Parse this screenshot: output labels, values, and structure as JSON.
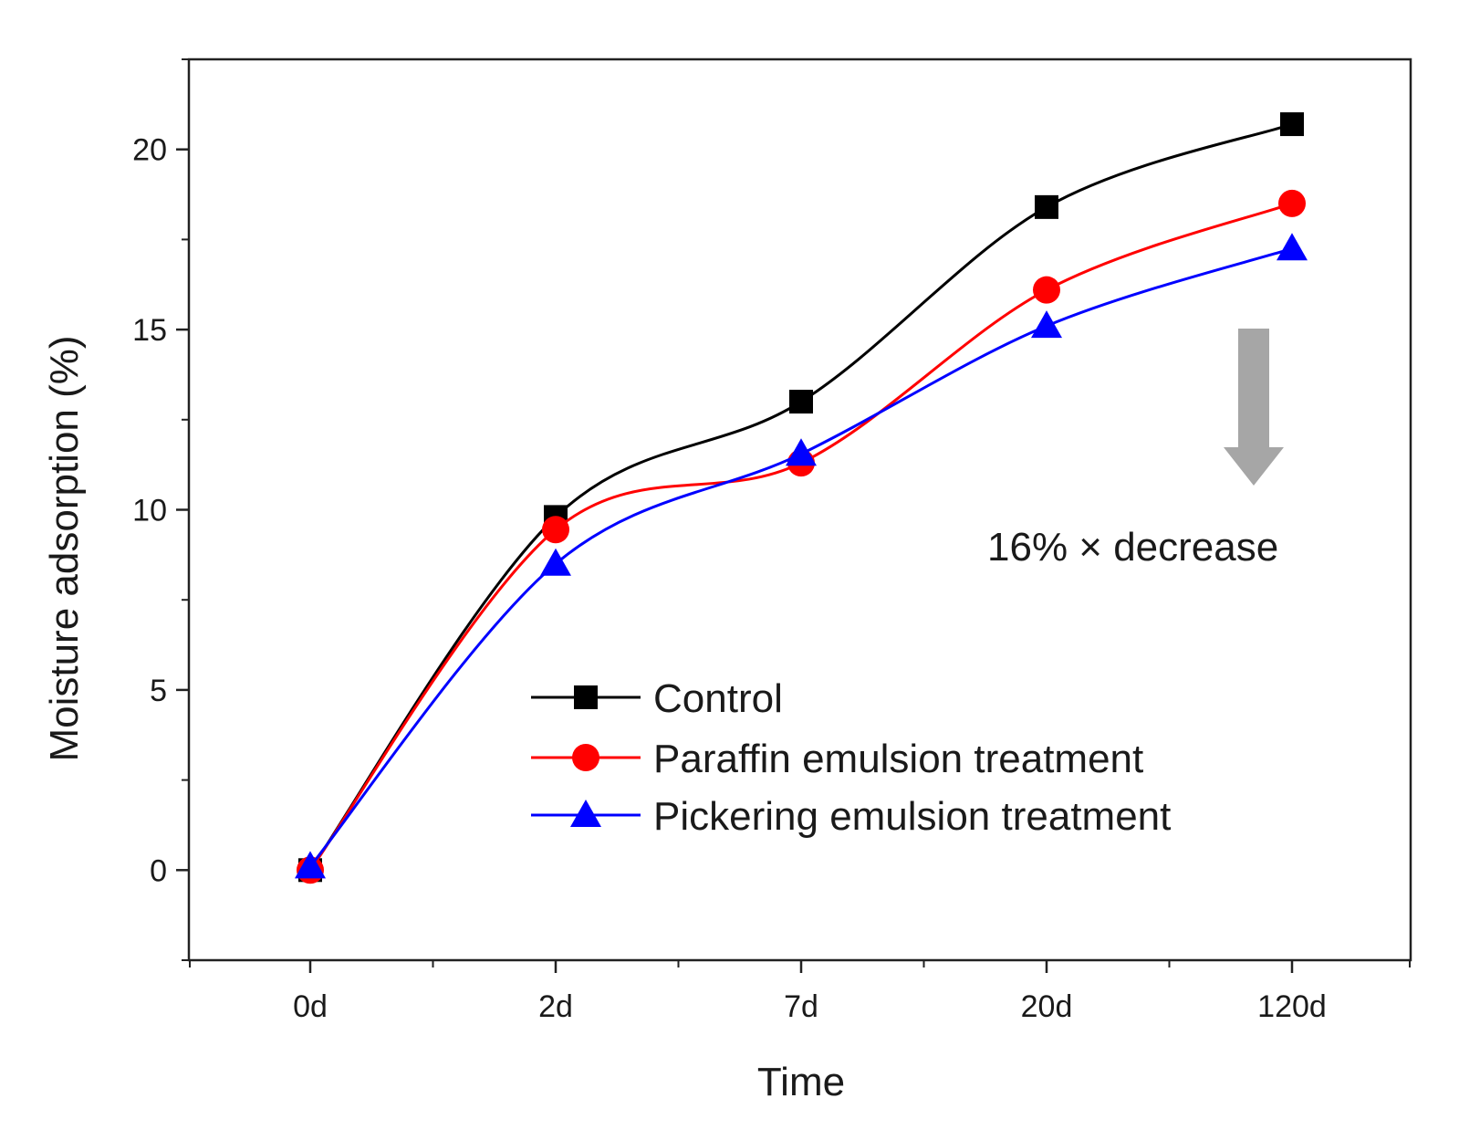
{
  "chart_data": {
    "type": "line",
    "title": "",
    "xlabel": "Time",
    "ylabel": "Moisture adsorption (%)",
    "categories": [
      "0d",
      "2d",
      "7d",
      "20d",
      "120d"
    ],
    "ylim": [
      -2.5,
      22.5
    ],
    "yticks": [
      0,
      5,
      10,
      15,
      20
    ],
    "ytick_labels": [
      "0",
      "5",
      "10",
      "15",
      "20"
    ],
    "grid": false,
    "legend_position": "center-right",
    "series": [
      {
        "name": "Control",
        "color": "#000000",
        "marker": "square",
        "values": [
          0,
          9.8,
          13.0,
          18.4,
          20.7
        ]
      },
      {
        "name": "Paraffin emulsion treatment",
        "color": "#ff0000",
        "marker": "circle",
        "values": [
          0,
          9.45,
          11.3,
          16.1,
          18.5
        ]
      },
      {
        "name": "Pickering emulsion treatment",
        "color": "#0000ff",
        "marker": "triangle",
        "values": [
          0.1,
          8.5,
          11.55,
          15.1,
          17.25
        ]
      }
    ],
    "annotation": {
      "text": "16% × decrease",
      "arrow_color": "#a6a6a6"
    }
  }
}
